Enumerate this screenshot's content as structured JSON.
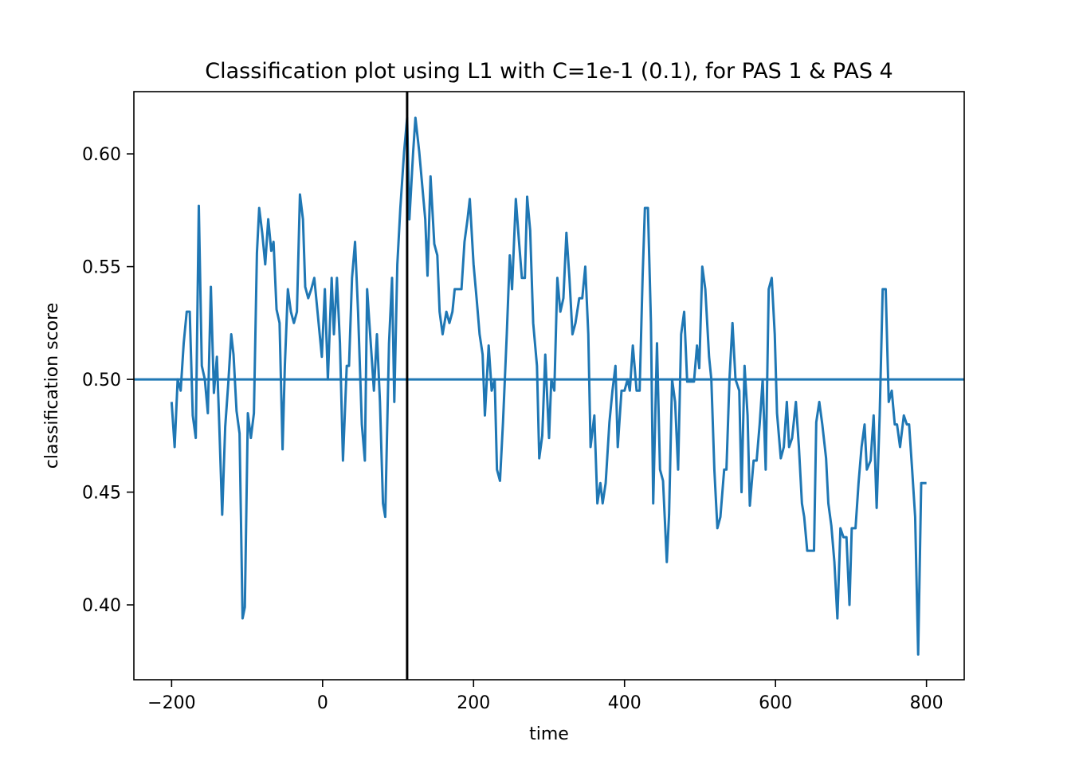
{
  "chart_data": {
    "type": "line",
    "title": "Classification plot using L1 with C=1e-1 (0.1), for PAS 1 & PAS 4",
    "x_label": "time",
    "y_label": "classification score",
    "color": "#1f77b4",
    "hline": 0.5,
    "hline_color": "#1f77b4",
    "vline": 112,
    "vline_color": "#000000",
    "xlim": [
      -250,
      850
    ],
    "ylim": [
      0.3668,
      0.6276
    ],
    "xticks": [
      {
        "value": -200,
        "label": "−200"
      },
      0,
      200,
      400,
      600,
      800
    ],
    "yticks": [
      {
        "value": 0.4,
        "label": "0.40"
      },
      0.45,
      {
        "value": 0.5,
        "label": "0.50"
      },
      0.55,
      {
        "value": 0.6,
        "label": "0.60"
      }
    ],
    "x": [
      -200,
      -196,
      -192,
      -188,
      -184,
      -180,
      -176,
      -172,
      -168,
      -164,
      -160,
      -156,
      -152,
      -148,
      -144,
      -140,
      -137,
      -133,
      -129,
      -125,
      -121,
      -118,
      -114,
      -110,
      -106,
      -103,
      -99,
      -95,
      -91,
      -87,
      -84,
      -80,
      -76,
      -72,
      -68,
      -65,
      -61,
      -57,
      -53,
      -50,
      -46,
      -42,
      -38,
      -34,
      -30,
      -26,
      -23,
      -19,
      -15,
      -11,
      -1,
      3,
      7,
      12,
      15,
      19,
      23,
      27,
      32,
      35,
      39,
      43,
      47,
      52,
      56,
      59,
      63,
      68,
      72,
      76,
      80,
      83,
      88,
      92,
      95,
      99,
      103,
      108,
      112,
      115,
      120,
      123,
      128,
      132,
      136,
      139,
      143,
      148,
      152,
      155,
      159,
      164,
      168,
      172,
      175,
      179,
      184,
      188,
      192,
      195,
      200,
      204,
      208,
      212,
      215,
      220,
      224,
      228,
      231,
      235,
      239,
      244,
      248,
      251,
      256,
      260,
      264,
      268,
      271,
      275,
      279,
      284,
      287,
      291,
      295,
      300,
      303,
      307,
      311,
      315,
      319,
      323,
      327,
      331,
      335,
      340,
      344,
      348,
      352,
      355,
      360,
      364,
      368,
      371,
      375,
      380,
      384,
      388,
      391,
      396,
      400,
      404,
      407,
      411,
      416,
      420,
      424,
      427,
      431,
      435,
      438,
      443,
      447,
      451,
      456,
      459,
      463,
      467,
      471,
      475,
      479,
      483,
      487,
      492,
      496,
      499,
      503,
      507,
      512,
      515,
      519,
      523,
      527,
      532,
      535,
      539,
      543,
      547,
      552,
      555,
      559,
      563,
      566,
      571,
      575,
      579,
      583,
      587,
      591,
      595,
      599,
      602,
      607,
      611,
      615,
      618,
      622,
      627,
      631,
      635,
      638,
      642,
      647,
      651,
      654,
      658,
      662,
      667,
      670,
      674,
      678,
      682,
      686,
      690,
      694,
      698,
      701,
      706,
      710,
      714,
      718,
      721,
      726,
      730,
      734,
      738,
      742,
      746,
      750,
      754,
      758,
      761,
      765,
      770,
      774,
      777,
      781,
      785,
      789,
      793,
      800
    ],
    "values": [
      0.49,
      0.47,
      0.5,
      0.495,
      0.516,
      0.53,
      0.53,
      0.484,
      0.474,
      0.577,
      0.506,
      0.5,
      0.485,
      0.541,
      0.494,
      0.51,
      0.481,
      0.44,
      0.479,
      0.498,
      0.52,
      0.511,
      0.486,
      0.476,
      0.394,
      0.399,
      0.485,
      0.474,
      0.485,
      0.556,
      0.576,
      0.565,
      0.551,
      0.571,
      0.557,
      0.561,
      0.531,
      0.525,
      0.469,
      0.506,
      0.54,
      0.53,
      0.525,
      0.53,
      0.582,
      0.571,
      0.541,
      0.536,
      0.54,
      0.545,
      0.51,
      0.54,
      0.5,
      0.545,
      0.52,
      0.545,
      0.516,
      0.464,
      0.506,
      0.506,
      0.545,
      0.561,
      0.53,
      0.48,
      0.464,
      0.54,
      0.52,
      0.495,
      0.52,
      0.49,
      0.445,
      0.439,
      0.516,
      0.545,
      0.49,
      0.551,
      0.576,
      0.601,
      0.616,
      0.571,
      0.601,
      0.616,
      0.601,
      0.586,
      0.571,
      0.546,
      0.59,
      0.56,
      0.555,
      0.53,
      0.52,
      0.53,
      0.525,
      0.53,
      0.54,
      0.54,
      0.54,
      0.561,
      0.571,
      0.58,
      0.551,
      0.536,
      0.52,
      0.511,
      0.484,
      0.515,
      0.495,
      0.5,
      0.46,
      0.455,
      0.481,
      0.52,
      0.555,
      0.54,
      0.58,
      0.562,
      0.545,
      0.545,
      0.581,
      0.566,
      0.525,
      0.506,
      0.465,
      0.475,
      0.511,
      0.474,
      0.5,
      0.495,
      0.545,
      0.53,
      0.536,
      0.565,
      0.545,
      0.52,
      0.525,
      0.536,
      0.536,
      0.55,
      0.52,
      0.47,
      0.484,
      0.445,
      0.454,
      0.445,
      0.454,
      0.481,
      0.495,
      0.506,
      0.47,
      0.495,
      0.495,
      0.5,
      0.495,
      0.515,
      0.495,
      0.495,
      0.546,
      0.576,
      0.576,
      0.525,
      0.445,
      0.516,
      0.46,
      0.455,
      0.419,
      0.44,
      0.5,
      0.49,
      0.46,
      0.52,
      0.53,
      0.499,
      0.499,
      0.499,
      0.515,
      0.505,
      0.55,
      0.54,
      0.51,
      0.5,
      0.46,
      0.434,
      0.439,
      0.46,
      0.46,
      0.5,
      0.525,
      0.5,
      0.495,
      0.45,
      0.506,
      0.484,
      0.444,
      0.464,
      0.464,
      0.48,
      0.5,
      0.46,
      0.54,
      0.545,
      0.52,
      0.485,
      0.465,
      0.47,
      0.49,
      0.47,
      0.474,
      0.49,
      0.47,
      0.445,
      0.439,
      0.424,
      0.424,
      0.424,
      0.481,
      0.49,
      0.48,
      0.465,
      0.445,
      0.435,
      0.419,
      0.394,
      0.434,
      0.43,
      0.43,
      0.4,
      0.434,
      0.434,
      0.454,
      0.47,
      0.48,
      0.46,
      0.464,
      0.484,
      0.443,
      0.484,
      0.54,
      0.54,
      0.49,
      0.495,
      0.48,
      0.48,
      0.47,
      0.484,
      0.48,
      0.48,
      0.46,
      0.439,
      0.378,
      0.454,
      0.454
    ]
  }
}
